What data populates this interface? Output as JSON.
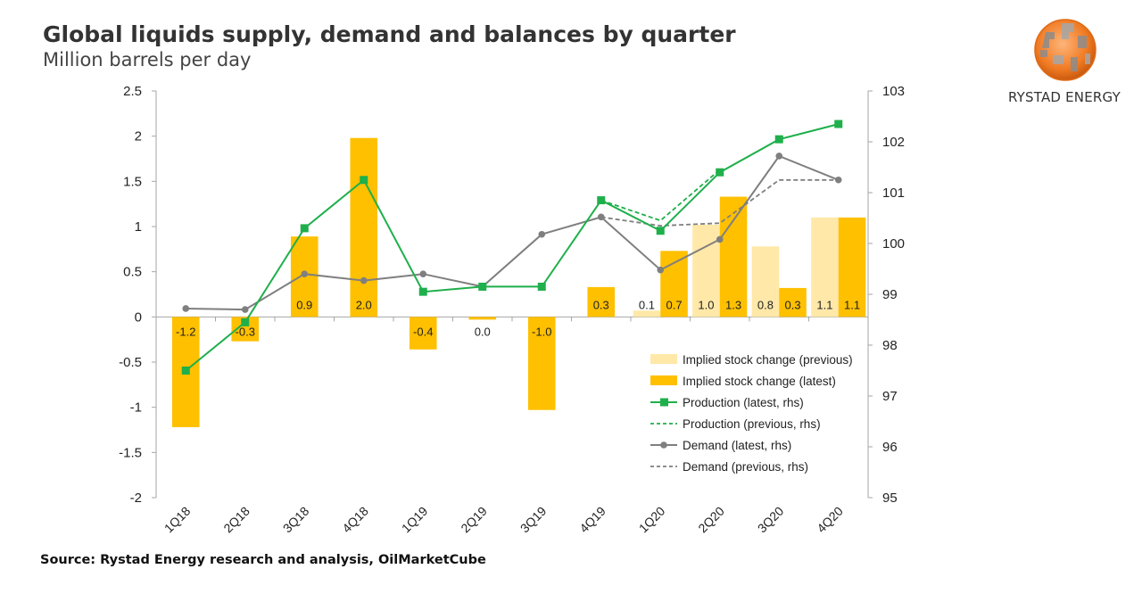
{
  "title": "Global liquids supply, demand and balances by quarter",
  "subtitle": "Million barrels per day",
  "source": "Source: Rystad Energy research and analysis, OilMarketCube",
  "brand": {
    "name": "RYSTAD ENERGY",
    "logo_icon": "rystad-globe-logo-icon"
  },
  "colors": {
    "stock_latest": "#FFC000",
    "stock_previous": "#FFE8A8",
    "production": "#1FAF4B",
    "demand": "#7F7F7F",
    "axis": "#A6A6A6",
    "text": "#222222"
  },
  "chart_data": {
    "type": "bar+line",
    "title": "Global liquids supply, demand and balances by quarter",
    "ylabel": "Million barrels per day",
    "categories": [
      "1Q18",
      "2Q18",
      "3Q18",
      "4Q18",
      "1Q19",
      "2Q19",
      "3Q19",
      "4Q19",
      "1Q20",
      "2Q20",
      "3Q20",
      "4Q20"
    ],
    "y_left": {
      "min": -2,
      "max": 2.5,
      "ticks": [
        2.5,
        2,
        1.5,
        1,
        0.5,
        0,
        -0.5,
        -1,
        -1.5,
        -2
      ],
      "tick_labels": [
        "2.5",
        "2",
        "1.5",
        "1",
        "0.5",
        "0",
        "-0.5",
        "-1",
        "-1.5",
        "-2"
      ]
    },
    "y_right": {
      "min": 95,
      "max": 103,
      "ticks": [
        103,
        102,
        101,
        100,
        99,
        98,
        97,
        96,
        95
      ],
      "tick_labels": [
        "103",
        "102",
        "101",
        "100",
        "99",
        "98",
        "97",
        "96",
        "95"
      ]
    },
    "bars_latest": {
      "name": "Implied stock change (latest)",
      "values": [
        -1.22,
        -0.27,
        0.89,
        1.98,
        -0.36,
        -0.03,
        -1.03,
        0.33,
        0.73,
        1.33,
        0.32,
        1.1
      ],
      "labels": [
        "-1.2",
        "-0.3",
        "0.9",
        "2.0",
        "-0.4",
        "0.0",
        "-1.0",
        "0.3",
        "0.7",
        "1.3",
        "0.3",
        "1.1"
      ]
    },
    "bars_previous": {
      "name": "Implied stock change (previous)",
      "start_index": 8,
      "values": [
        0.07,
        1.02,
        0.78,
        1.1
      ],
      "labels": [
        "0.1",
        "1.0",
        "0.8",
        "1.1"
      ]
    },
    "production_latest": {
      "name": "Production (latest, rhs)",
      "values": [
        97.5,
        98.45,
        100.3,
        101.25,
        99.05,
        99.15,
        99.15,
        100.85,
        100.25,
        101.4,
        102.05,
        102.35
      ]
    },
    "production_previous": {
      "name": "Production (previous, rhs)",
      "start_index": 7,
      "values": [
        100.85,
        100.45,
        101.45
      ]
    },
    "demand_latest": {
      "name": "Demand (latest, rhs)",
      "values": [
        98.72,
        98.7,
        99.4,
        99.27,
        99.4,
        99.15,
        100.18,
        100.52,
        99.48,
        100.08,
        101.72,
        101.25
      ]
    },
    "demand_previous": {
      "name": "Demand (previous, rhs)",
      "start_index": 7,
      "values": [
        100.52,
        100.35,
        100.4,
        101.25,
        101.25
      ]
    },
    "legend": [
      {
        "label": "Implied stock change (previous)",
        "kind": "bar-previous"
      },
      {
        "label": "Implied stock change (latest)",
        "kind": "bar-latest"
      },
      {
        "label": "Production (latest, rhs)",
        "kind": "line-production"
      },
      {
        "label": "Production (previous, rhs)",
        "kind": "dash-production"
      },
      {
        "label": "Demand (latest, rhs)",
        "kind": "line-demand"
      },
      {
        "label": "Demand (previous, rhs)",
        "kind": "dash-demand"
      }
    ],
    "legend_position": "lower-right inside plot"
  }
}
